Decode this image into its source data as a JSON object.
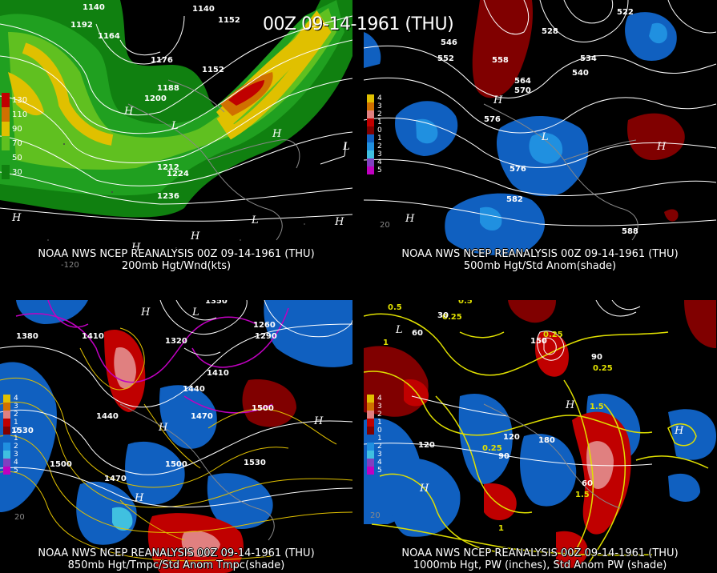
{
  "title": "00Z 09-14-1961 (THU)",
  "panels": [
    {
      "caption_line1": "NOAA NWS NCEP REANALYSIS 00Z 09-14-1961 (THU)",
      "caption_line2": "200mb Hgt/Wnd(kts)",
      "legend": [
        "130",
        "110",
        "90",
        "70",
        "50",
        "30"
      ],
      "legend_colors": [
        "#c00000",
        "#d07000",
        "#e0c000",
        "#60c020",
        "#20a020",
        "#108010"
      ],
      "contour_labels": [
        "1140",
        "1152",
        "1164",
        "1176",
        "1188",
        "1200",
        "1152",
        "1212",
        "1224",
        "1236",
        "1192"
      ],
      "hl_labels": [
        "H",
        "L",
        "H",
        "H",
        "L",
        "H",
        "L",
        "H",
        "H"
      ],
      "lon_label": "-120"
    },
    {
      "caption_line1": "NOAA NWS NCEP REANALYSIS 00Z 09-14-1961 (THU)",
      "caption_line2": "500mb Hgt/Std Anom(shade)",
      "legend": [
        "4",
        "3",
        "2",
        "1",
        "0",
        "1",
        "2",
        "3",
        "4",
        "5"
      ],
      "legend_colors": [
        "#e0c000",
        "#d07000",
        "#e08080",
        "#c00000",
        "#800000",
        "#1060c0",
        "#2090e0",
        "#40c0e0",
        "#8040c0",
        "#c000c0"
      ],
      "contour_labels": [
        "546",
        "552",
        "558",
        "564",
        "570",
        "576",
        "582",
        "588",
        "534",
        "540",
        "528",
        "522"
      ],
      "hl_labels": [
        "H",
        "L",
        "H",
        "H"
      ],
      "lon_label": "20"
    },
    {
      "caption_line1": "NOAA NWS NCEP REANALYSIS 00Z 09-14-1961 (THU)",
      "caption_line2": "850mb Hgt/Tmpc/Std Anom Tmpc(shade)",
      "legend": [
        "4",
        "3",
        "2",
        "1",
        "0",
        "1",
        "2",
        "3",
        "4",
        "5"
      ],
      "legend_colors": [
        "#e0c000",
        "#d07000",
        "#e08080",
        "#c00000",
        "#800000",
        "#1060c0",
        "#2090e0",
        "#40c0e0",
        "#8040c0",
        "#c000c0"
      ],
      "contour_labels": [
        "1350",
        "1410",
        "1440",
        "1470",
        "1500",
        "1530",
        "1290",
        "1260",
        "1320",
        "1380"
      ],
      "hl_labels": [
        "H",
        "L",
        "H",
        "H",
        "H"
      ],
      "lon_label": "20"
    },
    {
      "caption_line1": "NOAA NWS NCEP REANALYSIS 00Z 09-14-1961 (THU)",
      "caption_line2": "1000mb Hgt, PW (inches), Std Anom PW (shade)",
      "legend": [
        "4",
        "3",
        "2",
        "1",
        "0",
        "1",
        "2",
        "3",
        "4",
        "5"
      ],
      "legend_colors": [
        "#e0c000",
        "#d07000",
        "#e08080",
        "#c00000",
        "#800000",
        "#1060c0",
        "#2090e0",
        "#40c0e0",
        "#8040c0",
        "#c000c0"
      ],
      "contour_labels": [
        "0.5",
        "0.25",
        "1",
        "1.5",
        "60",
        "90",
        "120",
        "150",
        "180",
        "30"
      ],
      "hl_labels": [
        "H",
        "L",
        "H",
        "H"
      ],
      "lon_label": "20"
    }
  ]
}
